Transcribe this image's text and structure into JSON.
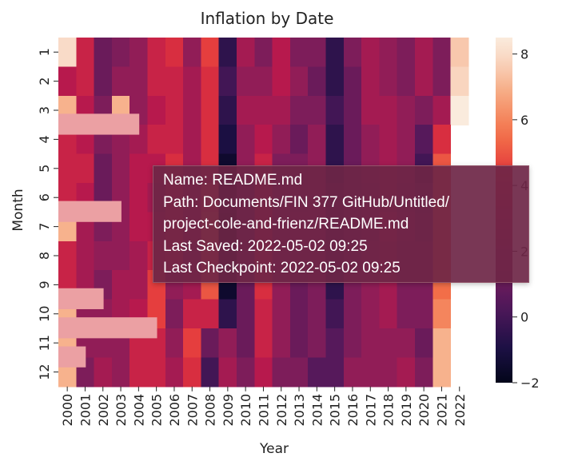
{
  "chart_data": {
    "type": "heatmap",
    "title": "Inflation by Date",
    "xlabel": "Year",
    "ylabel": "Month",
    "x_categories": [
      "2000",
      "2001",
      "2002",
      "2003",
      "2004",
      "2005",
      "2006",
      "2007",
      "2008",
      "2009",
      "2010",
      "2011",
      "2012",
      "2013",
      "2014",
      "2015",
      "2016",
      "2017",
      "2018",
      "2019",
      "2020",
      "2021",
      "2022"
    ],
    "y_categories": [
      "1",
      "2",
      "3",
      "4",
      "5",
      "6",
      "7",
      "8",
      "9",
      "10",
      "11",
      "12"
    ],
    "colorbar": {
      "min": -2,
      "max": 8.5,
      "ticks": [
        -2,
        0,
        2,
        4,
        6,
        8
      ]
    },
    "values": [
      [
        8.0,
        3.5,
        1.0,
        1.5,
        2.0,
        3.5,
        4.0,
        2.0,
        4.5,
        -0.5,
        2.5,
        1.5,
        3.0,
        1.5,
        1.5,
        -0.5,
        1.5,
        2.5,
        2.0,
        1.5,
        2.5,
        1.5,
        7.5
      ],
      [
        3.0,
        3.5,
        1.0,
        2.0,
        2.0,
        3.5,
        3.5,
        2.5,
        4.0,
        0.0,
        2.0,
        2.0,
        3.0,
        2.0,
        1.0,
        -0.5,
        1.0,
        2.5,
        2.0,
        1.5,
        2.5,
        1.5,
        7.8
      ],
      [
        7.0,
        3.0,
        1.5,
        7.0,
        2.0,
        3.0,
        3.5,
        2.5,
        4.0,
        -0.5,
        2.5,
        2.5,
        2.5,
        1.5,
        1.5,
        0.0,
        1.0,
        2.5,
        2.5,
        2.0,
        1.5,
        2.5,
        8.5
      ],
      [
        3.5,
        3.0,
        1.5,
        2.0,
        2.5,
        3.5,
        3.5,
        2.5,
        4.0,
        -1.0,
        2.0,
        3.0,
        2.0,
        1.0,
        2.0,
        -0.5,
        1.0,
        2.0,
        2.5,
        2.0,
        0.5,
        4.0,
        null
      ],
      [
        3.5,
        3.5,
        1.0,
        2.0,
        3.0,
        3.0,
        4.0,
        2.5,
        4.0,
        -1.5,
        2.0,
        3.5,
        1.5,
        1.5,
        2.0,
        -0.5,
        1.0,
        2.0,
        2.5,
        2.0,
        0.0,
        5.0,
        null
      ],
      [
        3.5,
        3.0,
        1.0,
        2.0,
        3.0,
        2.5,
        4.0,
        2.5,
        5.0,
        -1.5,
        1.0,
        3.5,
        1.5,
        1.5,
        2.0,
        0.0,
        1.0,
        1.5,
        2.5,
        1.5,
        0.5,
        5.0,
        null
      ],
      [
        7.0,
        2.5,
        1.5,
        2.0,
        3.0,
        3.0,
        4.0,
        2.5,
        5.5,
        -2.0,
        1.0,
        3.5,
        1.5,
        2.0,
        2.0,
        0.0,
        1.0,
        1.5,
        3.0,
        2.0,
        1.0,
        5.0,
        null
      ],
      [
        3.5,
        2.5,
        2.0,
        2.0,
        2.5,
        3.5,
        4.0,
        2.0,
        5.0,
        -1.5,
        1.0,
        4.0,
        1.5,
        1.5,
        1.5,
        0.0,
        1.0,
        2.0,
        2.5,
        1.5,
        1.5,
        5.0,
        null
      ],
      [
        3.5,
        2.5,
        1.5,
        2.5,
        2.5,
        4.5,
        2.0,
        2.5,
        5.0,
        -1.5,
        1.0,
        4.0,
        2.0,
        1.0,
        1.5,
        -0.5,
        1.5,
        2.0,
        2.5,
        1.5,
        1.5,
        5.5,
        null
      ],
      [
        7.0,
        2.0,
        2.0,
        2.5,
        3.0,
        4.5,
        1.5,
        3.5,
        3.5,
        -0.5,
        1.0,
        3.5,
        2.0,
        1.0,
        1.5,
        0.0,
        1.5,
        2.0,
        2.5,
        1.5,
        1.5,
        6.0,
        null
      ],
      [
        7.0,
        2.0,
        2.0,
        2.0,
        3.5,
        3.5,
        2.0,
        4.5,
        1.0,
        2.0,
        1.0,
        3.5,
        2.0,
        1.0,
        1.5,
        0.5,
        1.5,
        2.0,
        2.0,
        2.0,
        1.0,
        7.0,
        null
      ],
      [
        7.0,
        1.5,
        2.5,
        2.0,
        3.5,
        3.5,
        2.5,
        4.0,
        0.0,
        2.5,
        1.5,
        3.0,
        1.5,
        1.5,
        0.5,
        0.5,
        2.0,
        2.0,
        2.0,
        2.5,
        1.5,
        7.0,
        null
      ]
    ],
    "highlight_bars": [
      {
        "month": "3",
        "to_year": "2003",
        "color": "#eba0a3"
      },
      {
        "month": "6",
        "to_year": "2002",
        "color": "#eba0a3"
      },
      {
        "month": "9",
        "to_year": "2001",
        "color": "#eba0a3"
      },
      {
        "month": "10",
        "to_year": "2004",
        "color": "#eba0a3"
      },
      {
        "month": "11",
        "to_year": "2000",
        "color": "#eba0a3"
      }
    ],
    "grid": false,
    "legend": "colorbar-right",
    "colormap": "rocket"
  },
  "tooltip": {
    "name": "Name: README.md",
    "path_line1": "Path: Documents/FIN 377 GitHub/Untitled/",
    "path_line2": "project-cole-and-frienz/README.md",
    "last_saved": "Last Saved: 2022-05-02 09:25",
    "last_checkpoint": "Last Checkpoint: 2022-05-02 09:25"
  }
}
